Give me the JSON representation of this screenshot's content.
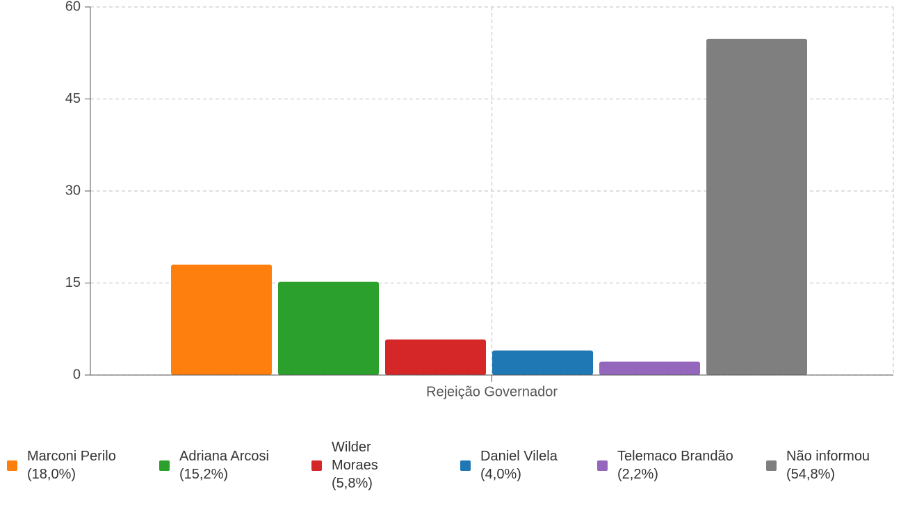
{
  "chart_data": {
    "type": "bar",
    "categories": [
      "Rejeição Governador"
    ],
    "series": [
      {
        "name": "Marconi Perilo (18,0%)",
        "color": "#ff7f0e",
        "values": [
          18.0
        ]
      },
      {
        "name": "Adriana Arcosi (15,2%)",
        "color": "#2ca02c",
        "values": [
          15.2
        ]
      },
      {
        "name": "Wilder Moraes (5,8%)",
        "color": "#d62728",
        "values": [
          5.8
        ]
      },
      {
        "name": "Daniel Vilela (4,0%)",
        "color": "#1f77b4",
        "values": [
          4.0
        ]
      },
      {
        "name": "Telemaco Brandão (2,2%)",
        "color": "#9467bd",
        "values": [
          2.2
        ]
      },
      {
        "name": "Não informou (54,8%)",
        "color": "#7f7f7f",
        "values": [
          54.8
        ]
      }
    ],
    "ylim": [
      0,
      60
    ],
    "yticks": [
      0,
      15,
      30,
      45,
      60
    ],
    "grid": true
  }
}
